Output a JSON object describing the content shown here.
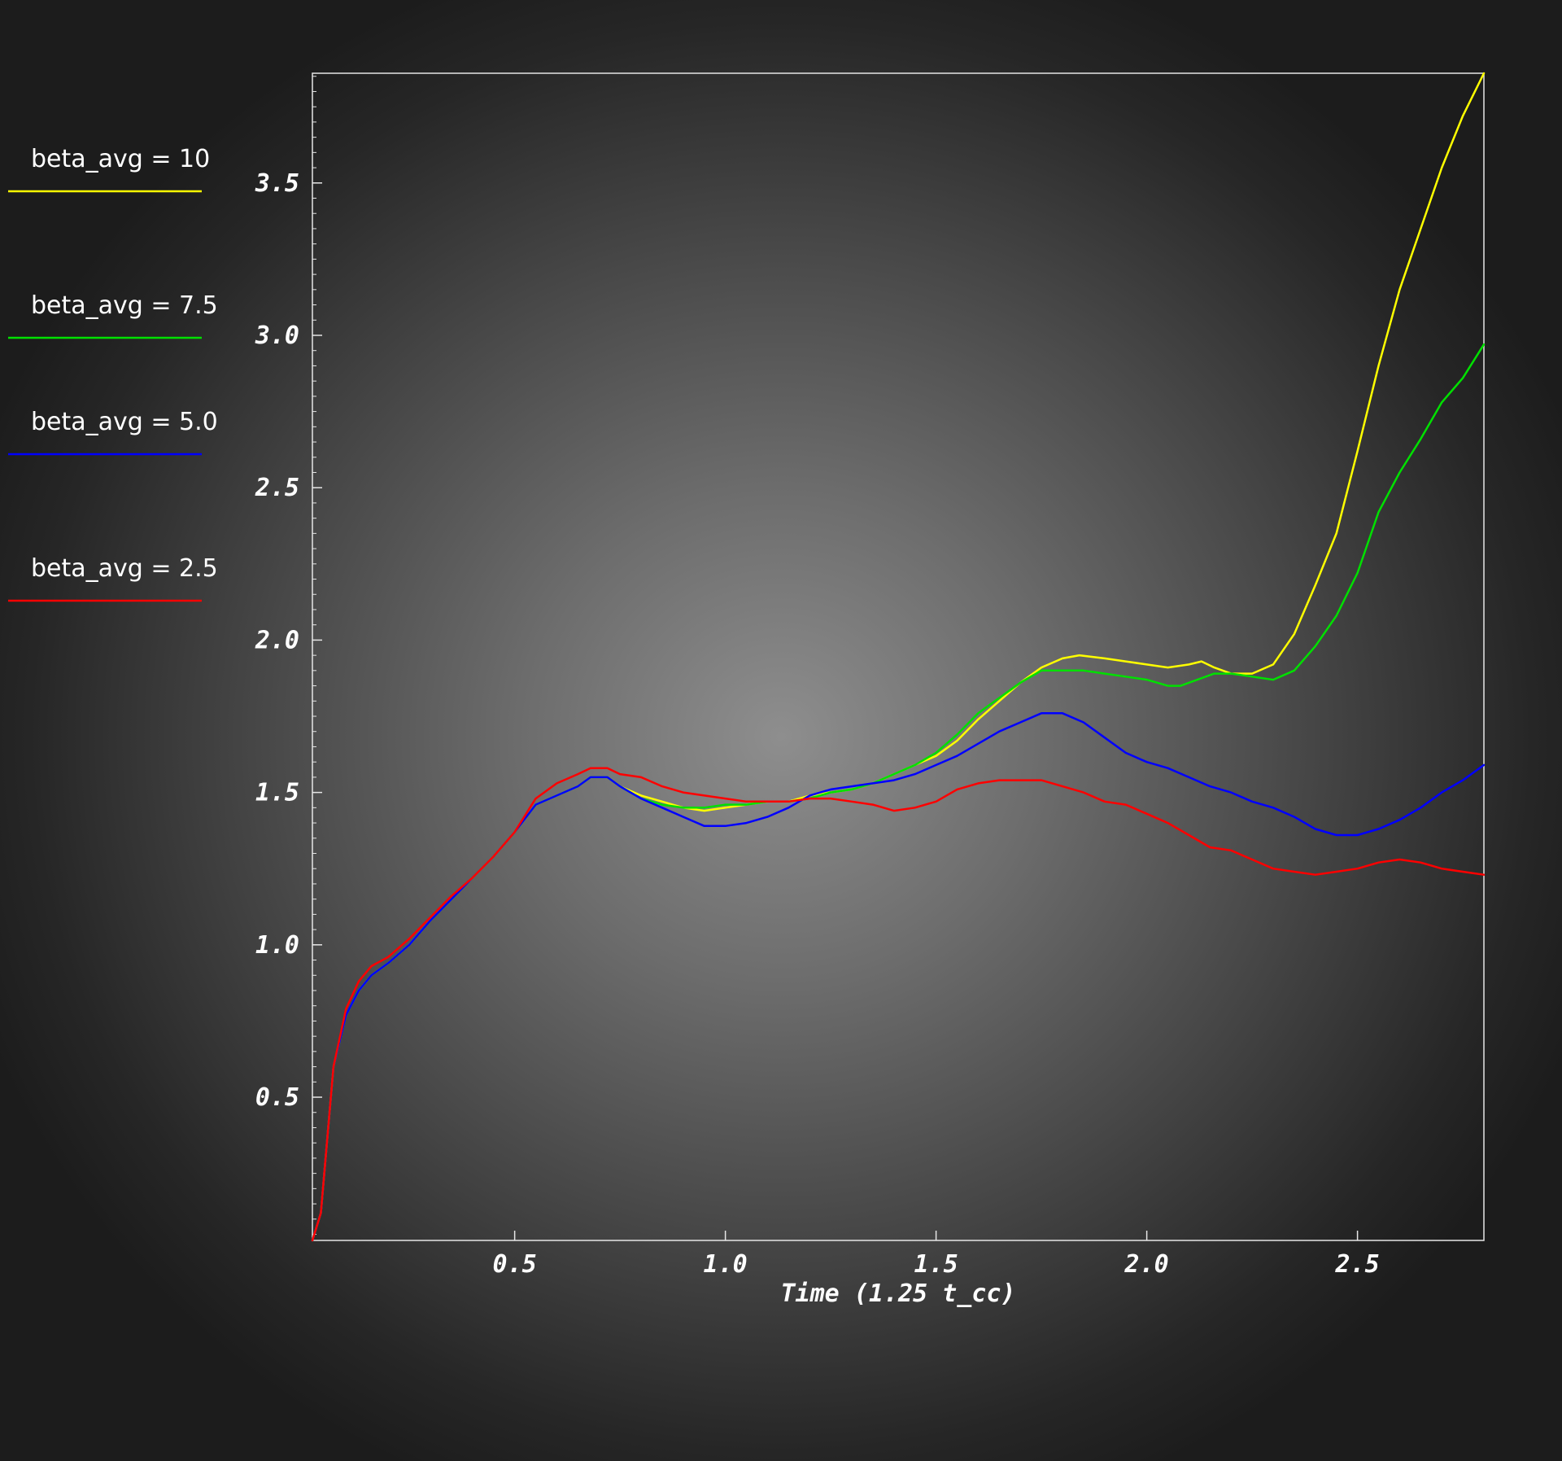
{
  "chart_data": {
    "type": "line",
    "title": "",
    "xlabel": "Time (1.25 t_cc)",
    "ylabel": "",
    "xlim": [
      0.02,
      2.8
    ],
    "ylim": [
      0.03,
      3.86
    ],
    "x_ticks": [
      0.5,
      1.0,
      1.5,
      2.0,
      2.5
    ],
    "x_tick_labels": [
      "0.5",
      "1.0",
      "1.5",
      "2.0",
      "2.5"
    ],
    "y_ticks": [
      0.5,
      1.0,
      1.5,
      2.0,
      2.5,
      3.0,
      3.5
    ],
    "y_tick_labels": [
      "0.5",
      "1.0",
      "1.5",
      "2.0",
      "2.5",
      "3.0",
      "3.5"
    ],
    "grid": false,
    "legend_position": "left",
    "series": [
      {
        "name": "beta_avg = 10",
        "color": "#ffff00",
        "x": [
          0.02,
          0.04,
          0.07,
          0.1,
          0.13,
          0.16,
          0.2,
          0.25,
          0.3,
          0.35,
          0.4,
          0.45,
          0.5,
          0.55,
          0.6,
          0.65,
          0.68,
          0.72,
          0.75,
          0.8,
          0.85,
          0.9,
          0.95,
          1.0,
          1.05,
          1.1,
          1.15,
          1.2,
          1.25,
          1.3,
          1.35,
          1.4,
          1.45,
          1.5,
          1.55,
          1.6,
          1.65,
          1.7,
          1.75,
          1.8,
          1.84,
          1.9,
          1.95,
          2.0,
          2.05,
          2.1,
          2.13,
          2.16,
          2.2,
          2.25,
          2.3,
          2.35,
          2.4,
          2.45,
          2.5,
          2.55,
          2.6,
          2.65,
          2.7,
          2.75,
          2.8
        ],
        "y": [
          0.03,
          0.12,
          0.6,
          0.77,
          0.85,
          0.9,
          0.94,
          1.0,
          1.08,
          1.15,
          1.22,
          1.29,
          1.37,
          1.46,
          1.49,
          1.52,
          1.55,
          1.55,
          1.52,
          1.49,
          1.47,
          1.45,
          1.44,
          1.45,
          1.46,
          1.47,
          1.47,
          1.49,
          1.5,
          1.51,
          1.53,
          1.56,
          1.59,
          1.62,
          1.67,
          1.74,
          1.8,
          1.86,
          1.91,
          1.94,
          1.95,
          1.94,
          1.93,
          1.92,
          1.91,
          1.92,
          1.93,
          1.91,
          1.89,
          1.89,
          1.92,
          2.02,
          2.18,
          2.35,
          2.62,
          2.9,
          3.15,
          3.35,
          3.55,
          3.72,
          3.86
        ]
      },
      {
        "name": "beta_avg = 7.5",
        "color": "#00e000",
        "x": [
          0.02,
          0.04,
          0.07,
          0.1,
          0.13,
          0.16,
          0.2,
          0.25,
          0.3,
          0.35,
          0.4,
          0.45,
          0.5,
          0.55,
          0.6,
          0.65,
          0.68,
          0.72,
          0.75,
          0.8,
          0.85,
          0.9,
          0.95,
          1.0,
          1.05,
          1.1,
          1.15,
          1.2,
          1.25,
          1.3,
          1.35,
          1.4,
          1.45,
          1.5,
          1.55,
          1.6,
          1.65,
          1.7,
          1.75,
          1.78,
          1.85,
          1.9,
          1.95,
          2.0,
          2.05,
          2.08,
          2.12,
          2.16,
          2.2,
          2.25,
          2.3,
          2.35,
          2.4,
          2.45,
          2.5,
          2.55,
          2.6,
          2.65,
          2.7,
          2.75,
          2.8
        ],
        "y": [
          0.03,
          0.12,
          0.6,
          0.77,
          0.85,
          0.9,
          0.94,
          1.0,
          1.08,
          1.15,
          1.22,
          1.29,
          1.37,
          1.46,
          1.49,
          1.52,
          1.55,
          1.55,
          1.52,
          1.48,
          1.46,
          1.45,
          1.45,
          1.46,
          1.46,
          1.47,
          1.47,
          1.48,
          1.5,
          1.51,
          1.53,
          1.56,
          1.59,
          1.63,
          1.69,
          1.76,
          1.81,
          1.86,
          1.9,
          1.9,
          1.9,
          1.89,
          1.88,
          1.87,
          1.85,
          1.85,
          1.87,
          1.89,
          1.89,
          1.88,
          1.87,
          1.9,
          1.98,
          2.08,
          2.22,
          2.42,
          2.55,
          2.66,
          2.78,
          2.86,
          2.97
        ]
      },
      {
        "name": "beta_avg = 5.0",
        "color": "#0000ff",
        "x": [
          0.02,
          0.04,
          0.07,
          0.1,
          0.13,
          0.16,
          0.2,
          0.25,
          0.3,
          0.35,
          0.4,
          0.45,
          0.5,
          0.55,
          0.6,
          0.65,
          0.68,
          0.72,
          0.75,
          0.8,
          0.85,
          0.9,
          0.95,
          1.0,
          1.05,
          1.1,
          1.15,
          1.2,
          1.25,
          1.3,
          1.35,
          1.4,
          1.45,
          1.5,
          1.55,
          1.6,
          1.65,
          1.7,
          1.75,
          1.8,
          1.85,
          1.9,
          1.95,
          2.0,
          2.05,
          2.1,
          2.15,
          2.2,
          2.25,
          2.3,
          2.35,
          2.4,
          2.45,
          2.5,
          2.55,
          2.6,
          2.65,
          2.7,
          2.75,
          2.8
        ],
        "y": [
          0.03,
          0.12,
          0.6,
          0.77,
          0.85,
          0.9,
          0.94,
          1.0,
          1.08,
          1.15,
          1.22,
          1.29,
          1.37,
          1.46,
          1.49,
          1.52,
          1.55,
          1.55,
          1.52,
          1.48,
          1.45,
          1.42,
          1.39,
          1.39,
          1.4,
          1.42,
          1.45,
          1.49,
          1.51,
          1.52,
          1.53,
          1.54,
          1.56,
          1.59,
          1.62,
          1.66,
          1.7,
          1.73,
          1.76,
          1.76,
          1.73,
          1.68,
          1.63,
          1.6,
          1.58,
          1.55,
          1.52,
          1.5,
          1.47,
          1.45,
          1.42,
          1.38,
          1.36,
          1.36,
          1.38,
          1.41,
          1.45,
          1.5,
          1.54,
          1.59
        ]
      },
      {
        "name": "beta_avg = 2.5",
        "color": "#ff0000",
        "x": [
          0.02,
          0.04,
          0.07,
          0.1,
          0.13,
          0.16,
          0.2,
          0.25,
          0.3,
          0.35,
          0.4,
          0.45,
          0.5,
          0.55,
          0.6,
          0.65,
          0.68,
          0.72,
          0.75,
          0.8,
          0.85,
          0.9,
          0.95,
          1.0,
          1.05,
          1.1,
          1.15,
          1.2,
          1.25,
          1.3,
          1.35,
          1.4,
          1.45,
          1.5,
          1.55,
          1.6,
          1.65,
          1.7,
          1.75,
          1.8,
          1.85,
          1.9,
          1.95,
          2.0,
          2.05,
          2.1,
          2.15,
          2.2,
          2.25,
          2.3,
          2.35,
          2.4,
          2.45,
          2.5,
          2.55,
          2.6,
          2.65,
          2.7,
          2.75,
          2.8
        ],
        "y": [
          0.03,
          0.12,
          0.6,
          0.79,
          0.88,
          0.93,
          0.96,
          1.02,
          1.09,
          1.16,
          1.22,
          1.29,
          1.37,
          1.48,
          1.53,
          1.56,
          1.58,
          1.58,
          1.56,
          1.55,
          1.52,
          1.5,
          1.49,
          1.48,
          1.47,
          1.47,
          1.47,
          1.48,
          1.48,
          1.47,
          1.46,
          1.44,
          1.45,
          1.47,
          1.51,
          1.53,
          1.54,
          1.54,
          1.54,
          1.52,
          1.5,
          1.47,
          1.46,
          1.43,
          1.4,
          1.36,
          1.32,
          1.31,
          1.28,
          1.25,
          1.24,
          1.23,
          1.24,
          1.25,
          1.27,
          1.28,
          1.27,
          1.25,
          1.24,
          1.23
        ]
      }
    ]
  }
}
